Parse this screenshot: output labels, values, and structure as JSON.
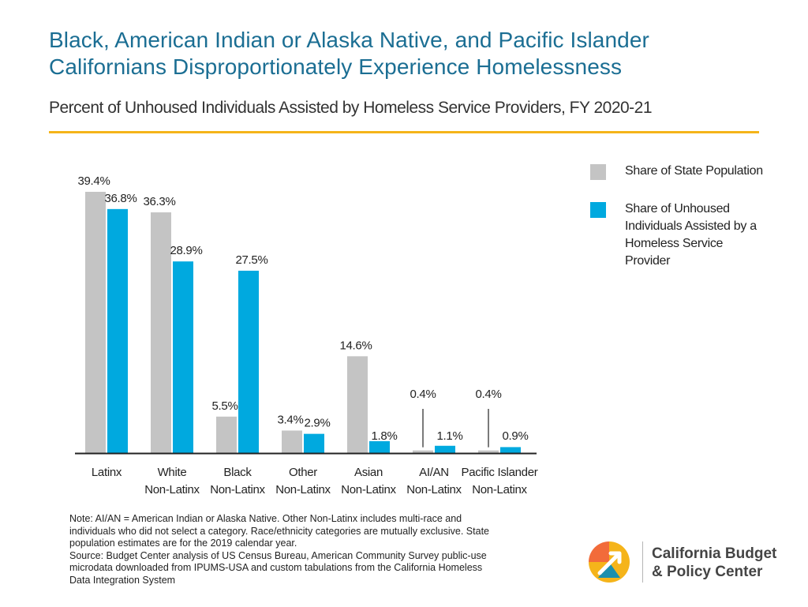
{
  "header": {
    "title_line1": "Black, American Indian or Alaska Native, and Pacific Islander",
    "title_line2": "Californians Disproportionately Experience Homelessness",
    "subtitle": "Percent of Unhoused Individuals Assisted by Homeless Service Providers, FY 2020-21"
  },
  "colors": {
    "title": "#1b6e93",
    "rule": "#f5b41a",
    "state_population": "#c4c4c4",
    "unhoused": "#00a9df"
  },
  "chart_data": {
    "type": "bar",
    "title": "Percent of Unhoused Individuals Assisted by Homeless Service Providers, FY 2020-21",
    "categories": [
      [
        "Latinx"
      ],
      [
        "White",
        "Non-Latinx"
      ],
      [
        "Black",
        "Non-Latinx"
      ],
      [
        "Other",
        "Non-Latinx"
      ],
      [
        "Asian",
        "Non-Latinx"
      ],
      [
        "AI/AN",
        "Non-Latinx"
      ],
      [
        "Pacific Islander",
        "Non-Latinx"
      ]
    ],
    "series": [
      {
        "name": "Share of State Population",
        "values": [
          39.4,
          36.3,
          5.5,
          3.4,
          14.6,
          0.4,
          0.4
        ],
        "labels": [
          "39.4%",
          "36.3%",
          "5.5%",
          "3.4%",
          "14.6%",
          "0.4%",
          "0.4%"
        ]
      },
      {
        "name": "Share of Unhoused Individuals Assisted by a Homeless Service Provider",
        "values": [
          36.8,
          28.9,
          27.5,
          2.9,
          1.8,
          1.1,
          0.9
        ],
        "labels": [
          "36.8%",
          "28.9%",
          "27.5%",
          "2.9%",
          "1.8%",
          "1.1%",
          "0.9%"
        ]
      }
    ],
    "ylim": [
      0,
      40
    ],
    "grid": false,
    "legend_position": "right"
  },
  "legend": {
    "state_population_lines": [
      "Share of State Population"
    ],
    "unhoused_lines": [
      "Share of Unhoused",
      "Individuals Assisted by a",
      "Homeless Service",
      "Provider"
    ]
  },
  "notes": {
    "lines": [
      "Note: AI/AN = American Indian or Alaska Native. Other Non-Latinx includes multi-race and",
      "individuals who did not select a category. Race/ethnicity categories are mutually exclusive. State",
      "population estimates are for the 2019 calendar year.",
      "Source: Budget Center analysis of US Census Bureau, American Community Survey public-use",
      "microdata downloaded from IPUMS-USA and custom tabulations from the California Homeless",
      "Data Integration System"
    ]
  },
  "logo": {
    "line1": "California Budget",
    "line2": "& Policy Center"
  }
}
